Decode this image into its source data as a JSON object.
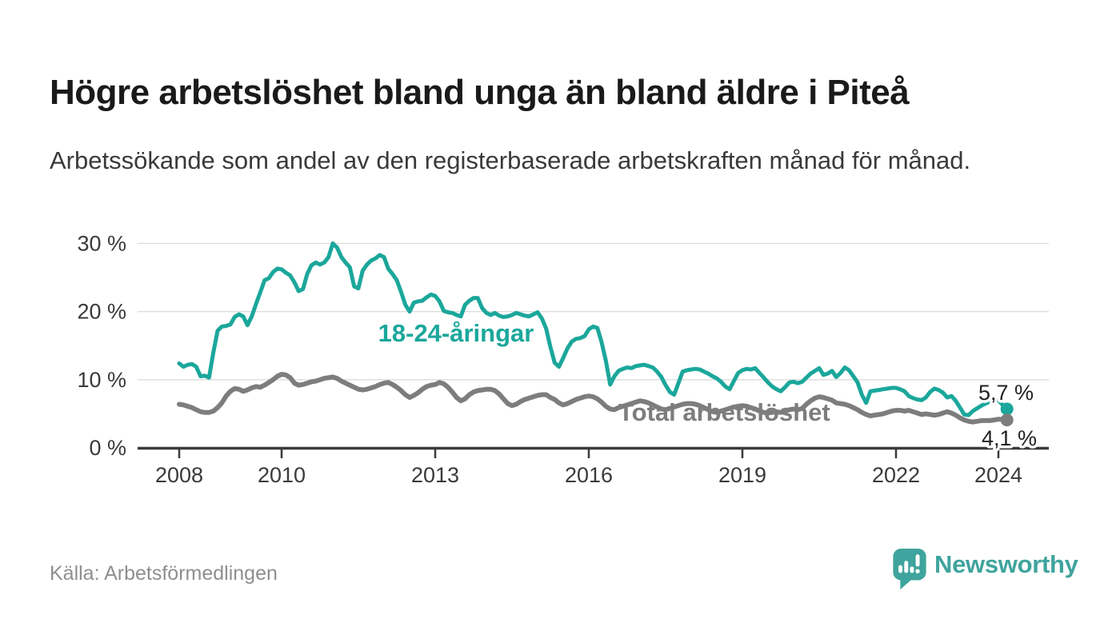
{
  "header": {
    "title": "Högre arbetslöshet bland unga än bland äldre i Piteå",
    "subtitle": "Arbetssökande som andel av den registerbaserade arbetskraften månad för månad."
  },
  "footer": {
    "source": "Källa: Arbetsförmedlingen",
    "brand": "Newsworthy",
    "brand_icon": "newsworthy-bubble-chart-icon"
  },
  "colors": {
    "accent_teal": "#1BA79B",
    "line_total": "#7D7D7D",
    "axis": "#3A3A3A",
    "grid": "#DBDBDB",
    "title": "#1A1A1A",
    "text": "#3A3A3A",
    "source": "#8F8F8F",
    "brand": "#3FA49D",
    "value_label": "#222222"
  },
  "chart_data": {
    "type": "line",
    "x_unit": "month",
    "x_start": "2008-01",
    "x_end": "2024-03",
    "x_ticks": [
      "2008",
      "2010",
      "2013",
      "2016",
      "2019",
      "2022",
      "2024"
    ],
    "x_tick_years": [
      2008,
      2010,
      2013,
      2016,
      2019,
      2022,
      2024
    ],
    "y_ticks": [
      "0 %",
      "10 %",
      "20 %",
      "30 %"
    ],
    "y_tick_values": [
      0,
      10,
      20,
      30
    ],
    "ylim": [
      0,
      31
    ],
    "grid": "horizontal",
    "legend": "inline-labels",
    "series": [
      {
        "id": "18-24-aringar",
        "name": "18-24-åringar",
        "color": "#1BA79B",
        "end_label": "5,7 %",
        "end_value": 5.7,
        "values": [
          12.4,
          11.9,
          12.2,
          12.3,
          11.9,
          10.5,
          10.6,
          10.3,
          14.0,
          17.2,
          17.8,
          17.9,
          18.1,
          19.2,
          19.6,
          19.3,
          18.0,
          19.3,
          21.1,
          22.8,
          24.6,
          24.9,
          25.8,
          26.3,
          26.2,
          25.7,
          25.3,
          24.3,
          23.0,
          23.3,
          25.5,
          26.8,
          27.2,
          26.9,
          27.2,
          28.0,
          30.0,
          29.4,
          28.0,
          27.2,
          26.5,
          23.7,
          23.4,
          26.0,
          26.9,
          27.5,
          27.8,
          28.3,
          28.0,
          26.3,
          25.5,
          24.6,
          22.9,
          21.0,
          20.0,
          21.3,
          21.5,
          21.6,
          22.1,
          22.5,
          22.3,
          21.5,
          20.1,
          19.9,
          19.8,
          19.5,
          19.3,
          21.0,
          21.6,
          22.0,
          22.0,
          20.5,
          19.8,
          19.5,
          19.8,
          19.4,
          19.2,
          19.3,
          19.5,
          19.8,
          19.6,
          19.4,
          19.3,
          19.6,
          19.9,
          19.0,
          17.5,
          14.8,
          12.5,
          11.9,
          13.2,
          14.6,
          15.6,
          16.0,
          16.1,
          16.4,
          17.4,
          17.8,
          17.6,
          15.5,
          12.8,
          9.3,
          10.5,
          11.3,
          11.6,
          11.8,
          11.7,
          12.0,
          12.1,
          12.2,
          12.0,
          11.8,
          11.2,
          10.4,
          9.2,
          8.2,
          7.8,
          9.5,
          11.2,
          11.4,
          11.5,
          11.6,
          11.5,
          11.2,
          10.9,
          10.5,
          10.2,
          9.7,
          9.0,
          8.6,
          9.8,
          11.0,
          11.4,
          11.6,
          11.5,
          11.7,
          11.0,
          10.3,
          9.6,
          9.0,
          8.6,
          8.3,
          8.9,
          9.6,
          9.7,
          9.5,
          9.7,
          10.3,
          10.9,
          11.3,
          11.7,
          10.7,
          10.9,
          11.3,
          10.4,
          11.0,
          11.8,
          11.4,
          10.5,
          9.6,
          7.8,
          6.6,
          8.3,
          8.4,
          8.5,
          8.6,
          8.7,
          8.8,
          8.8,
          8.6,
          8.3,
          7.6,
          7.3,
          7.1,
          7.0,
          7.4,
          8.2,
          8.7,
          8.5,
          8.1,
          7.4,
          7.6,
          6.9,
          5.9,
          4.9,
          4.8,
          5.4,
          5.8,
          6.2,
          6.5,
          6.8,
          7.0,
          7.0,
          6.3,
          5.7
        ]
      },
      {
        "id": "total-arbetsloshet",
        "name": "Total arbetslöshet",
        "color": "#7D7D7D",
        "end_label": "4,1 %",
        "end_value": 4.1,
        "values": [
          6.4,
          6.3,
          6.1,
          5.9,
          5.6,
          5.3,
          5.2,
          5.2,
          5.4,
          5.9,
          6.6,
          7.6,
          8.3,
          8.7,
          8.6,
          8.3,
          8.5,
          8.8,
          9.0,
          8.9,
          9.2,
          9.6,
          10.0,
          10.5,
          10.8,
          10.7,
          10.3,
          9.5,
          9.2,
          9.3,
          9.5,
          9.7,
          9.8,
          10.0,
          10.2,
          10.3,
          10.4,
          10.2,
          9.8,
          9.5,
          9.2,
          8.9,
          8.6,
          8.5,
          8.6,
          8.8,
          9.0,
          9.3,
          9.5,
          9.6,
          9.3,
          8.9,
          8.4,
          7.8,
          7.4,
          7.7,
          8.1,
          8.6,
          9.0,
          9.2,
          9.3,
          9.6,
          9.4,
          8.9,
          8.2,
          7.4,
          6.9,
          7.2,
          7.8,
          8.2,
          8.4,
          8.5,
          8.6,
          8.6,
          8.4,
          7.9,
          7.2,
          6.5,
          6.2,
          6.4,
          6.8,
          7.1,
          7.3,
          7.5,
          7.7,
          7.8,
          7.8,
          7.4,
          7.1,
          6.6,
          6.3,
          6.5,
          6.8,
          7.1,
          7.3,
          7.5,
          7.6,
          7.5,
          7.2,
          6.7,
          6.1,
          5.7,
          5.6,
          5.9,
          6.1,
          6.3,
          6.5,
          6.7,
          6.9,
          6.8,
          6.6,
          6.3,
          6.0,
          5.7,
          5.6,
          5.8,
          6.0,
          6.2,
          6.4,
          6.5,
          6.5,
          6.4,
          6.2,
          5.9,
          5.6,
          5.3,
          5.2,
          5.4,
          5.6,
          5.8,
          6.0,
          6.1,
          6.2,
          6.1,
          5.9,
          5.7,
          5.4,
          5.2,
          5.1,
          5.2,
          5.3,
          5.2,
          5.4,
          5.6,
          5.7,
          5.6,
          5.8,
          6.4,
          6.9,
          7.3,
          7.5,
          7.4,
          7.2,
          7.0,
          6.6,
          6.5,
          6.4,
          6.2,
          5.9,
          5.6,
          5.2,
          4.9,
          4.7,
          4.8,
          4.9,
          5.0,
          5.2,
          5.4,
          5.5,
          5.5,
          5.4,
          5.5,
          5.3,
          5.1,
          4.9,
          5.0,
          4.9,
          4.8,
          4.9,
          5.1,
          5.3,
          5.1,
          4.8,
          4.4,
          4.1,
          3.9,
          3.8,
          3.9,
          4.0,
          4.0,
          4.0,
          4.1,
          4.2,
          4.2,
          4.1
        ]
      }
    ]
  }
}
